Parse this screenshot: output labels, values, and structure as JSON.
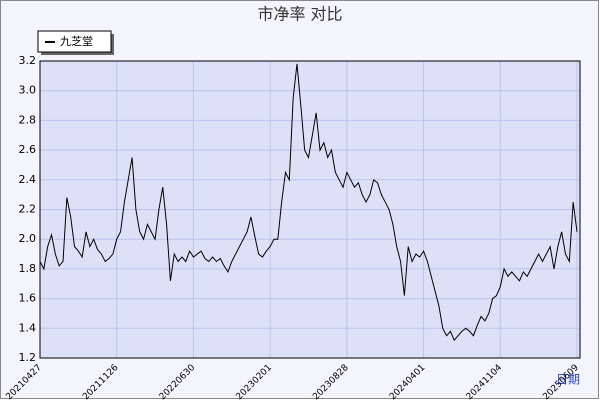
{
  "chart_data": {
    "type": "line",
    "title": "市净率 对比",
    "xlabel": "日期",
    "categories": [
      "20210427",
      null,
      null,
      null,
      null,
      null,
      null,
      null,
      null,
      null,
      null,
      null,
      null,
      null,
      null,
      null,
      null,
      null,
      null,
      null,
      "20211126",
      null,
      null,
      null,
      null,
      null,
      null,
      null,
      null,
      null,
      null,
      null,
      null,
      null,
      null,
      null,
      null,
      null,
      null,
      null,
      "20220630",
      null,
      null,
      null,
      null,
      null,
      null,
      null,
      null,
      null,
      null,
      null,
      null,
      null,
      null,
      null,
      null,
      null,
      null,
      null,
      "20230201",
      null,
      null,
      null,
      null,
      null,
      null,
      null,
      null,
      null,
      null,
      null,
      null,
      null,
      null,
      null,
      null,
      null,
      null,
      null,
      "20230828",
      null,
      null,
      null,
      null,
      null,
      null,
      null,
      null,
      null,
      null,
      null,
      null,
      null,
      null,
      null,
      null,
      null,
      null,
      null,
      "20240401",
      null,
      null,
      null,
      null,
      null,
      null,
      null,
      null,
      null,
      null,
      null,
      null,
      null,
      null,
      null,
      null,
      null,
      null,
      null,
      "20241104",
      null,
      null,
      null,
      null,
      null,
      null,
      null,
      null,
      null,
      null,
      null,
      null,
      null,
      null,
      null,
      null,
      null,
      null,
      null,
      "20250609"
    ],
    "series": [
      {
        "name": "九芝堂",
        "color": "#000000",
        "values": [
          1.85,
          1.8,
          1.95,
          2.03,
          1.9,
          1.82,
          1.85,
          2.28,
          2.15,
          1.95,
          1.92,
          1.88,
          2.05,
          1.95,
          2.0,
          1.93,
          1.9,
          1.85,
          1.87,
          1.9,
          2.0,
          2.05,
          2.25,
          2.4,
          2.55,
          2.2,
          2.05,
          2.0,
          2.1,
          2.05,
          2.0,
          2.2,
          2.35,
          2.1,
          1.72,
          1.9,
          1.85,
          1.88,
          1.85,
          1.92,
          1.88,
          1.9,
          1.92,
          1.87,
          1.85,
          1.88,
          1.85,
          1.87,
          1.82,
          1.78,
          1.85,
          1.9,
          1.95,
          2.0,
          2.05,
          2.15,
          2.02,
          1.9,
          1.88,
          1.92,
          1.95,
          2.0,
          2.0,
          2.25,
          2.45,
          2.4,
          2.95,
          3.18,
          2.9,
          2.6,
          2.55,
          2.7,
          2.85,
          2.6,
          2.65,
          2.55,
          2.6,
          2.45,
          2.4,
          2.35,
          2.45,
          2.4,
          2.35,
          2.38,
          2.3,
          2.25,
          2.3,
          2.4,
          2.38,
          2.3,
          2.25,
          2.2,
          2.1,
          1.95,
          1.85,
          1.62,
          1.95,
          1.85,
          1.9,
          1.88,
          1.92,
          1.85,
          1.75,
          1.65,
          1.55,
          1.4,
          1.35,
          1.38,
          1.32,
          1.35,
          1.38,
          1.4,
          1.38,
          1.35,
          1.42,
          1.48,
          1.45,
          1.5,
          1.6,
          1.62,
          1.68,
          1.8,
          1.75,
          1.78,
          1.75,
          1.72,
          1.78,
          1.75,
          1.8,
          1.85,
          1.9,
          1.85,
          1.9,
          1.95,
          1.8,
          1.95,
          2.05,
          1.9,
          1.85,
          2.25,
          2.05
        ]
      }
    ],
    "ylim": [
      1.2,
      3.2
    ],
    "yticks": [
      1.2,
      1.4,
      1.6,
      1.8,
      {
        "value": 2,
        "label": "2.0"
      },
      2.2,
      2.4,
      2.6,
      2.8,
      {
        "value": 3,
        "label": "3.0"
      },
      3.2
    ],
    "grid": true,
    "legend": "top-left"
  }
}
